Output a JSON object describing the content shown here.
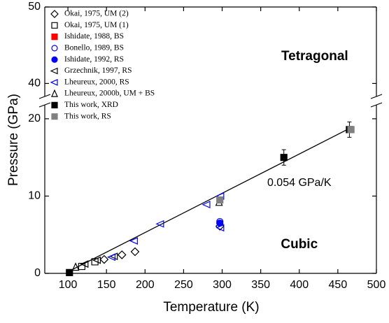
{
  "chart_data": {
    "type": "scatter",
    "x_label": "Temperature (K)",
    "y_label": "Pressure (GPa)",
    "xlim": [
      70,
      500
    ],
    "xticks": [
      100,
      150,
      200,
      250,
      300,
      350,
      400,
      450,
      500
    ],
    "ylim": [
      0,
      21.8
    ],
    "yticks": [
      0,
      10,
      20
    ],
    "ylim_upper": [
      38.3,
      50
    ],
    "yticks_upper": [
      40,
      50
    ],
    "annotations": [
      {
        "text": "Tetragonal",
        "x": 420,
        "y": 43.5
      },
      {
        "text": "Cubic",
        "x": 400,
        "y": 3.7
      },
      {
        "text": "0.054 GPa/K",
        "x": 400,
        "y": 11.7
      }
    ],
    "fit": {
      "color": "#000000",
      "x": [
        100,
        470
      ],
      "y": [
        0.2,
        19.0
      ]
    },
    "series": [
      {
        "name": "Okai, 1975, UM (2)",
        "color": "#000000",
        "marker": "diamond",
        "filled": false,
        "x": [
          147,
          170,
          187,
          297
        ],
        "y": [
          1.8,
          2.4,
          2.8,
          6.1
        ]
      },
      {
        "name": "Okai, 1975, UM (1)",
        "color": "#000000",
        "marker": "square",
        "filled": false,
        "x": [
          118,
          135
        ],
        "y": [
          0.9,
          1.5
        ]
      },
      {
        "name": "Ishidate, 1988, BS",
        "color": "#ff0000",
        "marker": "square",
        "filled": true,
        "x": [],
        "y": []
      },
      {
        "name": "Bonello, 1989, BS",
        "color": "#0000ff",
        "marker": "circle",
        "filled": false,
        "x": [
          297
        ],
        "y": [
          6.7
        ]
      },
      {
        "name": "Ishidate, 1992, RS",
        "color": "#0000ff",
        "marker": "circle",
        "filled": true,
        "x": [
          297
        ],
        "y": [
          6.5
        ]
      },
      {
        "name": "Grzechnik, 1997, RS",
        "color": "#000000",
        "marker": "ltri",
        "filled": false,
        "x": [
          122,
          138,
          160
        ],
        "y": [
          1.2,
          1.7,
          2.2
        ]
      },
      {
        "name": "Lheureux, 2000, RS",
        "color": "#0000ff",
        "marker": "ltri",
        "filled": false,
        "x": [
          157,
          186,
          220,
          280,
          298,
          298
        ],
        "y": [
          2.1,
          4.2,
          6.4,
          8.9,
          10.0,
          5.9
        ]
      },
      {
        "name": "Lheureux, 2000b, UM + BS",
        "color": "#000000",
        "marker": "utri",
        "filled": false,
        "x": [
          110,
          296
        ],
        "y": [
          0.8,
          9.2
        ]
      },
      {
        "name": "This work, XRD",
        "color": "#000000",
        "marker": "square",
        "filled": true,
        "x": [
          102,
          380,
          465
        ],
        "y": [
          0.1,
          15.0,
          18.6
        ],
        "errors": [
          0.3,
          1.0,
          1.0
        ]
      },
      {
        "name": "This work, RS",
        "color": "#808080",
        "marker": "square",
        "filled": true,
        "x": [
          297,
          467
        ],
        "y": [
          9.5,
          18.6
        ]
      }
    ]
  }
}
